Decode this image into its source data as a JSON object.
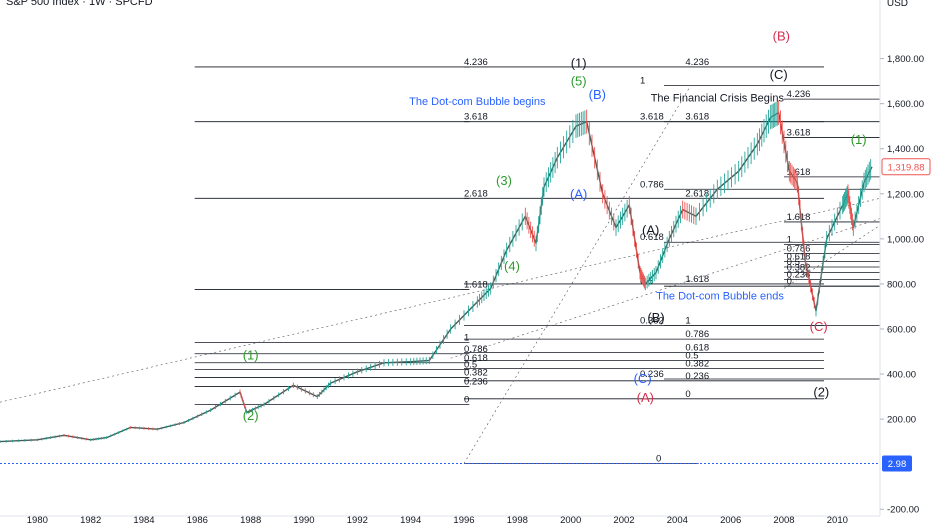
{
  "header": {
    "title": "S&P 500 Index · 1W · SPCFD",
    "currency": "USD"
  },
  "colors": {
    "line": "#131722",
    "green": "#2e9b2e",
    "blue": "#2962ff",
    "red": "#d32f4f",
    "price_badge": "#ef5350",
    "zero_badge": "#2962ff",
    "candle_up": "#26a69a",
    "candle_down": "#ef5350"
  },
  "chart_data": {
    "type": "line",
    "x_range": [
      1978.6,
      2011.6
    ],
    "y_range": [
      -230,
      2060
    ],
    "x_ticks": [
      "1980",
      "1982",
      "1984",
      "1986",
      "1988",
      "1990",
      "1992",
      "1994",
      "1996",
      "1998",
      "2000",
      "2002",
      "2004",
      "2006",
      "2008",
      "2010"
    ],
    "y_ticks": [
      "-200.00",
      "200.00",
      "400.00",
      "600.00",
      "800.00",
      "1,000.00",
      "1,200.00",
      "1,400.00",
      "1,600.00",
      "1,800.00"
    ],
    "y_tick_values": [
      -200,
      200,
      400,
      600,
      800,
      1000,
      1200,
      1400,
      1600,
      1800
    ],
    "last_price": {
      "value": 1319.88,
      "label": "1,319.88"
    },
    "zero_line": {
      "value": 2.98,
      "label": "2.98"
    },
    "series": [
      {
        "values": [
          [
            1978.6,
            100
          ],
          [
            1980.0,
            108
          ],
          [
            1981.0,
            128
          ],
          [
            1982.0,
            108
          ],
          [
            1982.6,
            118
          ],
          [
            1983.5,
            163
          ],
          [
            1984.5,
            155
          ],
          [
            1985.5,
            185
          ],
          [
            1986.5,
            240
          ],
          [
            1987.6,
            320
          ],
          [
            1987.85,
            230
          ],
          [
            1988.5,
            265
          ],
          [
            1989.6,
            350
          ],
          [
            1990.5,
            300
          ],
          [
            1991.0,
            360
          ],
          [
            1992.0,
            410
          ],
          [
            1993.0,
            450
          ],
          [
            1994.0,
            455
          ],
          [
            1994.7,
            460
          ],
          [
            1995.5,
            600
          ],
          [
            1996.5,
            720
          ],
          [
            1997.0,
            780
          ],
          [
            1997.6,
            950
          ],
          [
            1998.3,
            1100
          ],
          [
            1998.7,
            980
          ],
          [
            1999.0,
            1230
          ],
          [
            1999.5,
            1360
          ],
          [
            2000.2,
            1500
          ],
          [
            2000.6,
            1520
          ],
          [
            2001.2,
            1200
          ],
          [
            2001.7,
            1050
          ],
          [
            2002.2,
            1150
          ],
          [
            2002.6,
            850
          ],
          [
            2002.8,
            800
          ],
          [
            2003.2,
            850
          ],
          [
            2003.7,
            1000
          ],
          [
            2004.2,
            1130
          ],
          [
            2004.7,
            1100
          ],
          [
            2005.5,
            1220
          ],
          [
            2006.3,
            1300
          ],
          [
            2007.0,
            1420
          ],
          [
            2007.5,
            1540
          ],
          [
            2007.8,
            1560
          ],
          [
            2008.2,
            1300
          ],
          [
            2008.5,
            1250
          ],
          [
            2008.8,
            900
          ],
          [
            2009.2,
            680
          ],
          [
            2009.6,
            1000
          ],
          [
            2010.2,
            1150
          ],
          [
            2010.4,
            1200
          ],
          [
            2010.6,
            1050
          ],
          [
            2011.0,
            1250
          ],
          [
            2011.3,
            1319.88
          ]
        ]
      }
    ],
    "fib_levels": [
      {
        "label": "4.236",
        "value": 1763,
        "x0": 1985.9,
        "x1": 1996.2,
        "label_x": 1996.0
      },
      {
        "label": "3.618",
        "value": 1520,
        "x0": 1985.9,
        "x1": 1996.2,
        "label_x": 1996.0
      },
      {
        "label": "2.618",
        "value": 1180,
        "x0": 1985.9,
        "x1": 1996.2,
        "label_x": 1996.0
      },
      {
        "label": "1.618",
        "value": 775,
        "x0": 1985.9,
        "x1": 1996.2,
        "label_x": 1996.0
      },
      {
        "label": "1",
        "value": 540,
        "x0": 1985.9,
        "x1": 1996.2,
        "label_x": 1996.0
      },
      {
        "label": "0.786",
        "value": 490,
        "x0": 1985.9,
        "x1": 1996.2,
        "label_x": 1996.0
      },
      {
        "label": "0.618",
        "value": 450,
        "x0": 1985.9,
        "x1": 1996.2,
        "label_x": 1996.0
      },
      {
        "label": "0.5",
        "value": 420,
        "x0": 1985.9,
        "x1": 1996.2,
        "label_x": 1996.0
      },
      {
        "label": "0.382",
        "value": 385,
        "x0": 1985.9,
        "x1": 1996.2,
        "label_x": 1996.0
      },
      {
        "label": "0.236",
        "value": 345,
        "x0": 1985.9,
        "x1": 1996.2,
        "label_x": 1996.0
      },
      {
        "label": "0",
        "value": 265,
        "x0": 1985.9,
        "x1": 1996.2,
        "label_x": 1996.0
      },
      {
        "label": "4.236",
        "value": 1763,
        "x0": 1996.0,
        "x1": 2009.5,
        "label_x": 2004.3
      },
      {
        "label": "3.618",
        "value": 1520,
        "x0": 1996.0,
        "x1": 2009.5,
        "label_x": 2004.3
      },
      {
        "label": "2.618",
        "value": 1180,
        "x0": 1996.0,
        "x1": 2009.5,
        "label_x": 2004.3
      },
      {
        "label": "1.618",
        "value": 800,
        "x0": 1996.0,
        "x1": 2009.5,
        "label_x": 2004.3
      },
      {
        "label": "1",
        "value": 615,
        "x0": 1996.0,
        "x1": 2009.5,
        "label_x": 2004.3
      },
      {
        "label": "0.786",
        "value": 555,
        "x0": 1996.0,
        "x1": 2009.5,
        "label_x": 2004.3
      },
      {
        "label": "0.618",
        "value": 495,
        "x0": 1996.0,
        "x1": 2009.5,
        "label_x": 2004.3
      },
      {
        "label": "0.5",
        "value": 460,
        "x0": 1996.0,
        "x1": 2009.5,
        "label_x": 2004.3
      },
      {
        "label": "0.382",
        "value": 425,
        "x0": 1996.0,
        "x1": 2009.5,
        "label_x": 2004.3
      },
      {
        "label": "0.236",
        "value": 370,
        "x0": 1996.0,
        "x1": 2009.5,
        "label_x": 2004.3
      },
      {
        "label": "0",
        "value": 290,
        "x0": 1996.0,
        "x1": 2009.5,
        "label_x": 2004.3
      },
      {
        "label": "1",
        "value": 1680,
        "x0": 2003.5,
        "x1": 2011.6,
        "label_x": 2002.6
      },
      {
        "label": "3.618",
        "value": 1520,
        "x0": 2003.5,
        "x1": 2011.6,
        "label_x": 2002.6
      },
      {
        "label": "0.786",
        "value": 1220,
        "x0": 2003.5,
        "x1": 2011.6,
        "label_x": 2002.6
      },
      {
        "label": "0.618",
        "value": 985,
        "x0": 2003.5,
        "x1": 2011.6,
        "label_x": 2002.6
      },
      {
        "label": "0.5",
        "value": 790,
        "x0": 2003.5,
        "x1": 2011.6,
        "label_x": 2002.6
      },
      {
        "label": "0.382",
        "value": 615,
        "x0": 2003.5,
        "x1": 2011.6,
        "label_x": 2002.6
      },
      {
        "label": "0.236",
        "value": 378,
        "x0": 2003.5,
        "x1": 2011.6,
        "label_x": 2002.6
      },
      {
        "label": "0",
        "value": 3,
        "x0": 1996.0,
        "x1": 2004.8,
        "label_x": 2003.2
      },
      {
        "label": "4.236",
        "value": 1620,
        "x0": 2008.0,
        "x1": 2011.6,
        "label_x": 2008.1
      },
      {
        "label": "3.618",
        "value": 1450,
        "x0": 2008.0,
        "x1": 2011.6,
        "label_x": 2008.1
      },
      {
        "label": "1.618",
        "value": 1275,
        "x0": 2008.0,
        "x1": 2011.6,
        "label_x": 2008.1
      },
      {
        "label": "1.618",
        "value": 1075,
        "x0": 2008.0,
        "x1": 2011.6,
        "label_x": 2008.1
      },
      {
        "label": "1",
        "value": 975,
        "x0": 2008.0,
        "x1": 2011.6,
        "label_x": 2008.1
      },
      {
        "label": "0.786",
        "value": 935,
        "x0": 2008.0,
        "x1": 2011.6,
        "label_x": 2008.1
      },
      {
        "label": "0.618",
        "value": 900,
        "x0": 2008.0,
        "x1": 2011.6,
        "label_x": 2008.1
      },
      {
        "label": "0.5",
        "value": 875,
        "x0": 2008.0,
        "x1": 2011.6,
        "label_x": 2008.1
      },
      {
        "label": "0.382",
        "value": 850,
        "x0": 2008.0,
        "x1": 2011.6,
        "label_x": 2008.1
      },
      {
        "label": "0.236",
        "value": 820,
        "x0": 2008.0,
        "x1": 2011.6,
        "label_x": 2008.1
      },
      {
        "label": "0",
        "value": 790,
        "x0": 2008.0,
        "x1": 2011.6,
        "label_x": 2008.1
      }
    ],
    "wave_labels": [
      {
        "text": "(1)",
        "x": 1988.0,
        "y": 465,
        "color": "green"
      },
      {
        "text": "(2)",
        "x": 1988.0,
        "y": 195,
        "color": "green"
      },
      {
        "text": "(3)",
        "x": 1997.5,
        "y": 1240,
        "color": "green"
      },
      {
        "text": "(4)",
        "x": 1997.8,
        "y": 860,
        "color": "green"
      },
      {
        "text": "(5)",
        "x": 2000.3,
        "y": 1680,
        "color": "green"
      },
      {
        "text": "(1)",
        "x": 2000.3,
        "y": 1760,
        "color": "black"
      },
      {
        "text": "(B)",
        "x": 2001.0,
        "y": 1620,
        "color": "blue"
      },
      {
        "text": "(A)",
        "x": 2000.3,
        "y": 1180,
        "color": "blue"
      },
      {
        "text": "(C)",
        "x": 2002.7,
        "y": 360,
        "color": "blue"
      },
      {
        "text": "(A)",
        "x": 2002.8,
        "y": 275,
        "color": "red"
      },
      {
        "text": "(A)",
        "x": 2003.0,
        "y": 1020,
        "color": "black"
      },
      {
        "text": "(B)",
        "x": 2003.2,
        "y": 630,
        "color": "black"
      },
      {
        "text": "(B)",
        "x": 2007.9,
        "y": 1880,
        "color": "red"
      },
      {
        "text": "(C)",
        "x": 2007.8,
        "y": 1710,
        "color": "black"
      },
      {
        "text": "(C)",
        "x": 2009.3,
        "y": 590,
        "color": "red"
      },
      {
        "text": "(2)",
        "x": 2009.4,
        "y": 300,
        "color": "black"
      },
      {
        "text": "(1)",
        "x": 2010.8,
        "y": 1420,
        "color": "green"
      }
    ],
    "annotations": [
      {
        "text": "The Dot-com Bubble begins",
        "x": 1996.5,
        "y": 1595,
        "color": "blue"
      },
      {
        "text": "The Financial Crisis Begins",
        "x": 2005.5,
        "y": 1610,
        "color": "black"
      },
      {
        "text": "The Dot-com Bubble ends",
        "x": 2005.6,
        "y": 730,
        "color": "blue"
      }
    ],
    "grid": false
  }
}
